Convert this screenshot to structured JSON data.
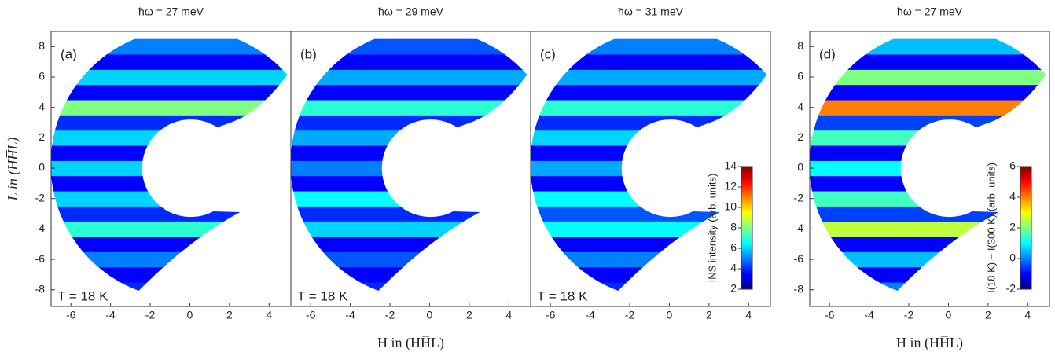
{
  "chart_data": [
    {
      "type": "heatmap",
      "title": "ħω = 27 meV",
      "panel_label": "(a)",
      "annotation": "T = 18 K",
      "ylabel": "L in (HH̅L)",
      "xlim": [
        -7,
        5.1
      ],
      "ylim": [
        -9.1,
        9.0
      ],
      "xticks": [
        -6,
        -4,
        -2,
        0,
        2,
        4
      ],
      "yticks": [
        -8,
        -6,
        -4,
        -2,
        0,
        2,
        4,
        6,
        8
      ],
      "y": [
        -8,
        -7,
        -6,
        -5,
        -4,
        -3,
        -2,
        -1,
        0,
        1,
        2,
        3,
        4,
        5,
        6,
        7,
        8
      ],
      "values": [
        4,
        3.5,
        5,
        3.5,
        7,
        4,
        6,
        3.5,
        6,
        3.5,
        6,
        4,
        8,
        3.5,
        6,
        3.5,
        5
      ],
      "zlim": [
        2,
        14
      ]
    },
    {
      "type": "heatmap",
      "title": "ħω = 29 meV",
      "panel_label": "(b)",
      "annotation": "T = 18 K",
      "xlabel": "H in (HH̅L)",
      "xlim": [
        -7,
        5.1
      ],
      "ylim": [
        -9.1,
        9.0
      ],
      "xticks": [
        -6,
        -4,
        -2,
        0,
        2,
        4
      ],
      "y": [
        -8,
        -7,
        -6,
        -5,
        -4,
        -3,
        -2,
        -1,
        0,
        1,
        2,
        3,
        4,
        5,
        6,
        7,
        8
      ],
      "values": [
        4,
        3.5,
        4.5,
        3.5,
        6,
        4,
        6.5,
        3.5,
        5,
        3.5,
        5.5,
        4,
        7,
        3.5,
        5.5,
        3.5,
        4.5
      ],
      "zlim": [
        2,
        14
      ]
    },
    {
      "type": "heatmap",
      "title": "ħω = 31 meV",
      "panel_label": "(c)",
      "annotation": "T = 18 K",
      "xlim": [
        -7,
        5.1
      ],
      "ylim": [
        -9.1,
        9.0
      ],
      "xticks": [
        -6,
        -4,
        -2,
        0,
        2,
        4
      ],
      "y": [
        -8,
        -7,
        -6,
        -5,
        -4,
        -3,
        -2,
        -1,
        0,
        1,
        2,
        3,
        4,
        5,
        6,
        7,
        8
      ],
      "values": [
        4,
        3.5,
        5,
        3.5,
        6.5,
        4.5,
        6.5,
        3.5,
        5.5,
        3.5,
        6,
        4,
        7,
        3.5,
        5.5,
        3.5,
        5
      ],
      "zlim": [
        2,
        14
      ],
      "colorbar": {
        "label": "INS intensity (arb. units)",
        "ticks": [
          2,
          4,
          6,
          8,
          10,
          12,
          14
        ]
      }
    },
    {
      "type": "heatmap",
      "title": "ħω = 27 meV",
      "panel_label": "(d)",
      "xlabel": "H in (HH̅L)",
      "xlim": [
        -7,
        5.1
      ],
      "ylim": [
        -9.1,
        9.0
      ],
      "xticks": [
        -6,
        -4,
        -2,
        0,
        2,
        4
      ],
      "yticks": [
        -8,
        -6,
        -4,
        -2,
        0,
        2,
        4,
        6,
        8
      ],
      "y": [
        -8,
        -7,
        -6,
        -5,
        -4,
        -3,
        -2,
        -1,
        0,
        1,
        2,
        3,
        4,
        5,
        6,
        7,
        8
      ],
      "values": [
        0,
        -1,
        0.5,
        -1,
        2.5,
        -0.5,
        1.5,
        -1,
        1,
        -1,
        1.5,
        -0.5,
        4,
        -1,
        2,
        -1,
        0.5
      ],
      "zlim": [
        -2,
        6
      ],
      "colorbar": {
        "label": "I(18 K) − I(300 K) (arb. units)",
        "ticks": [
          -2,
          0,
          2,
          4,
          6
        ]
      }
    }
  ]
}
